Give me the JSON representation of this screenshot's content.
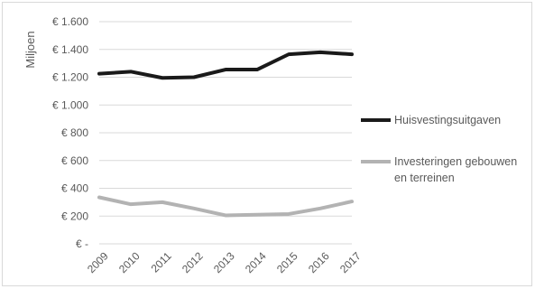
{
  "chart_data": {
    "type": "line",
    "title": "",
    "xlabel": "",
    "ylabel": "Miljoen",
    "categories": [
      "2009",
      "2010",
      "2011",
      "2012",
      "2013",
      "2014",
      "2015",
      "2016",
      "2017"
    ],
    "yticks": [
      "€ -",
      "€ 200",
      "€ 400",
      "€ 600",
      "€ 800",
      "€ 1.000",
      "€ 1.200",
      "€ 1.400",
      "€ 1.600"
    ],
    "ylim": [
      0,
      1600
    ],
    "grid": true,
    "legend_position": "right",
    "series": [
      {
        "name": "Huisvestingsuitgaven",
        "color": "#1a1a1a",
        "values": [
          1225,
          1240,
          1195,
          1200,
          1255,
          1255,
          1365,
          1380,
          1365
        ]
      },
      {
        "name": "Investeringen gebouwen en terreinen",
        "legend_lines": [
          "Investeringen gebouwen",
          "en terreinen"
        ],
        "color": "#b3b3b3",
        "values": [
          335,
          285,
          300,
          255,
          205,
          210,
          215,
          255,
          305
        ]
      }
    ]
  }
}
